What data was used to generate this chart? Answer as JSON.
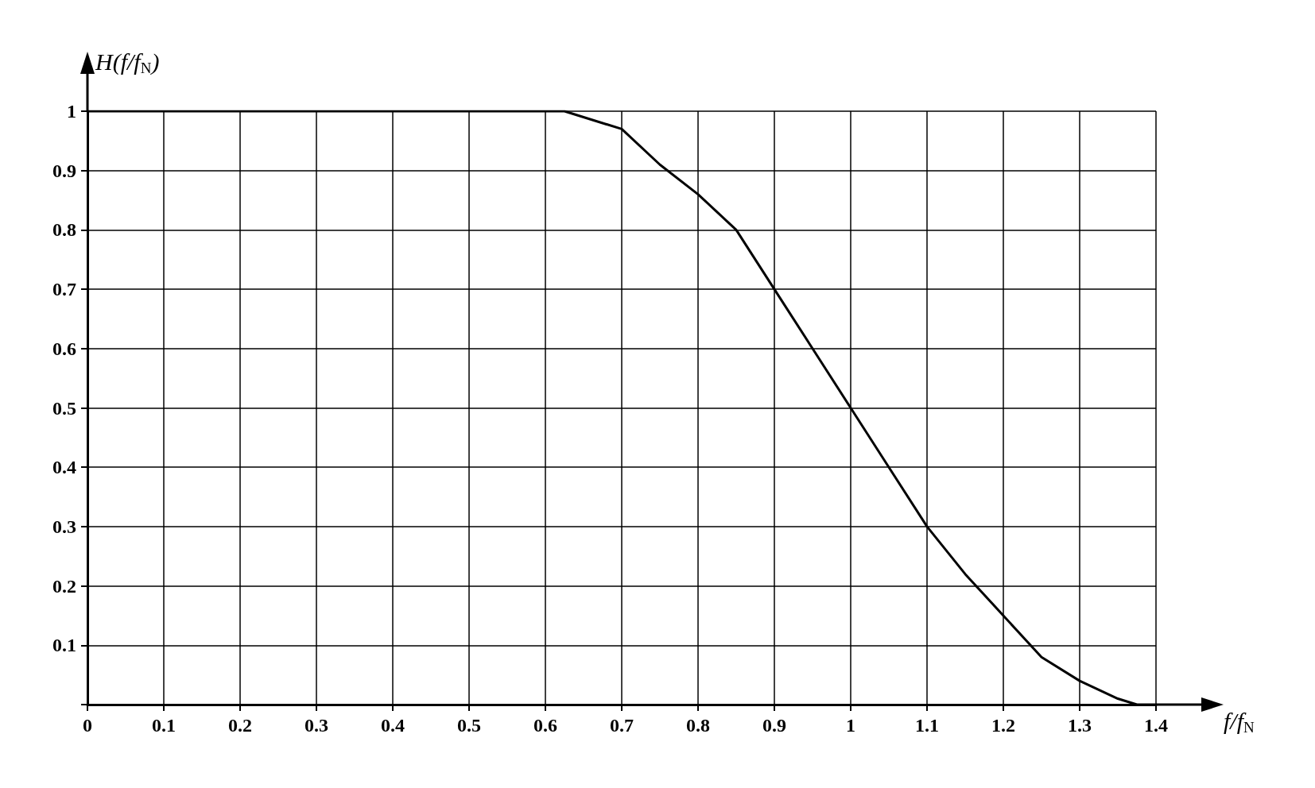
{
  "chart_data": {
    "type": "line",
    "xlabel": "f/f$_{N}$",
    "ylabel": "H(f/f$_{N}$)",
    "x": [
      0,
      0.1,
      0.2,
      0.3,
      0.4,
      0.5,
      0.6,
      0.625,
      0.65,
      0.7,
      0.75,
      0.8,
      0.85,
      0.9,
      0.95,
      1.0,
      1.05,
      1.1,
      1.15,
      1.2,
      1.25,
      1.3,
      1.35,
      1.375,
      1.4
    ],
    "series": [
      {
        "color": "#000000",
        "values": [
          1,
          1,
          1,
          1,
          1,
          1,
          1,
          1,
          0.99,
          0.97,
          0.91,
          0.86,
          0.8,
          0.7,
          0.6,
          0.5,
          0.4,
          0.3,
          0.22,
          0.15,
          0.08,
          0.04,
          0.01,
          0,
          0
        ]
      }
    ],
    "xlim": [
      0,
      1.4
    ],
    "xticks": [
      0,
      0.1,
      0.2,
      0.3,
      0.4,
      0.5,
      0.6,
      0.7,
      0.8,
      0.9,
      1,
      1.1,
      1.2,
      1.3,
      1.4
    ],
    "ylim": [
      0,
      1
    ],
    "yticks": [
      {
        "value": 0,
        "label": null
      },
      0.1,
      0.2,
      0.3,
      0.4,
      0.5,
      0.6,
      0.7,
      0.8,
      0.9,
      1
    ],
    "grid": true,
    "marker": "none",
    "line_style": "solid"
  }
}
